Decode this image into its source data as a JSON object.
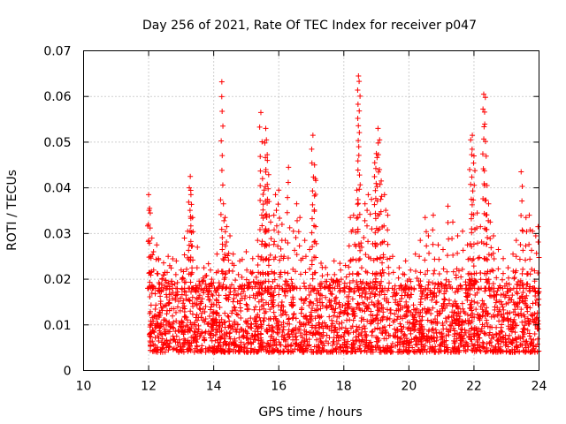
{
  "chart_data": {
    "type": "scatter",
    "title": "Day 256 of 2021, Rate Of TEC Index for receiver p047",
    "xlabel": "GPS time / hours",
    "ylabel": "ROTI / TECUs",
    "xlim": [
      10,
      24
    ],
    "ylim": [
      0,
      0.07
    ],
    "xticks": [
      10,
      12,
      14,
      16,
      18,
      20,
      22,
      24
    ],
    "xtick_labels": [
      "10",
      "12",
      "14",
      "16",
      "18",
      "20",
      "22",
      "24"
    ],
    "yticks": [
      0,
      0.01,
      0.02,
      0.03,
      0.04,
      0.05,
      0.06,
      0.07
    ],
    "ytick_labels": [
      "0",
      "0.01",
      "0.02",
      "0.03",
      "0.04",
      "0.05",
      "0.06",
      "0.07"
    ],
    "grid": true,
    "marker": "+",
    "color": "#ff0000",
    "series": [
      {
        "name": "p047",
        "points": [
          [
            12.0,
            0.0385
          ],
          [
            12.03,
            0.0355
          ],
          [
            12.05,
            0.0345
          ],
          [
            12.1,
            0.029
          ],
          [
            12.15,
            0.026
          ],
          [
            12.25,
            0.0275
          ],
          [
            12.3,
            0.0245
          ],
          [
            12.5,
            0.0215
          ],
          [
            12.6,
            0.025
          ],
          [
            12.7,
            0.0195
          ],
          [
            12.85,
            0.024
          ],
          [
            13.0,
            0.022
          ],
          [
            13.1,
            0.029
          ],
          [
            13.2,
            0.0305
          ],
          [
            13.25,
            0.04
          ],
          [
            13.28,
            0.0425
          ],
          [
            13.3,
            0.0385
          ],
          [
            13.35,
            0.0335
          ],
          [
            13.5,
            0.027
          ],
          [
            13.7,
            0.0225
          ],
          [
            13.9,
            0.022
          ],
          [
            14.1,
            0.0255
          ],
          [
            14.25,
            0.0632
          ],
          [
            14.3,
            0.0365
          ],
          [
            14.35,
            0.0335
          ],
          [
            14.4,
            0.0315
          ],
          [
            14.5,
            0.0295
          ],
          [
            14.6,
            0.0255
          ],
          [
            14.8,
            0.024
          ],
          [
            15.0,
            0.026
          ],
          [
            15.2,
            0.0245
          ],
          [
            15.35,
            0.0285
          ],
          [
            15.45,
            0.0565
          ],
          [
            15.5,
            0.042
          ],
          [
            15.55,
            0.0395
          ],
          [
            15.6,
            0.053
          ],
          [
            15.62,
            0.0505
          ],
          [
            15.65,
            0.046
          ],
          [
            15.7,
            0.037
          ],
          [
            15.75,
            0.0325
          ],
          [
            15.85,
            0.034
          ],
          [
            15.9,
            0.0385
          ],
          [
            16.0,
            0.0395
          ],
          [
            16.1,
            0.032
          ],
          [
            16.2,
            0.0285
          ],
          [
            16.3,
            0.0445
          ],
          [
            16.45,
            0.0305
          ],
          [
            16.55,
            0.0365
          ],
          [
            16.65,
            0.0335
          ],
          [
            16.8,
            0.0285
          ],
          [
            16.95,
            0.0265
          ],
          [
            17.05,
            0.0515
          ],
          [
            17.1,
            0.045
          ],
          [
            17.12,
            0.042
          ],
          [
            17.3,
            0.0235
          ],
          [
            17.5,
            0.021
          ],
          [
            17.7,
            0.024
          ],
          [
            17.9,
            0.022
          ],
          [
            18.05,
            0.023
          ],
          [
            18.2,
            0.0335
          ],
          [
            18.3,
            0.034
          ],
          [
            18.4,
            0.0395
          ],
          [
            18.45,
            0.0645
          ],
          [
            18.47,
            0.0633
          ],
          [
            18.55,
            0.027
          ],
          [
            18.65,
            0.0365
          ],
          [
            18.75,
            0.0385
          ],
          [
            18.85,
            0.0375
          ],
          [
            18.95,
            0.0455
          ],
          [
            19.0,
            0.0475
          ],
          [
            19.05,
            0.053
          ],
          [
            19.1,
            0.0505
          ],
          [
            19.15,
            0.0415
          ],
          [
            19.25,
            0.0385
          ],
          [
            19.35,
            0.034
          ],
          [
            19.5,
            0.025
          ],
          [
            19.7,
            0.0225
          ],
          [
            19.9,
            0.024
          ],
          [
            20.05,
            0.022
          ],
          [
            20.2,
            0.0255
          ],
          [
            20.35,
            0.0285
          ],
          [
            20.5,
            0.0335
          ],
          [
            20.6,
            0.0295
          ],
          [
            20.75,
            0.034
          ],
          [
            20.9,
            0.0275
          ],
          [
            21.05,
            0.0265
          ],
          [
            21.2,
            0.036
          ],
          [
            21.35,
            0.0325
          ],
          [
            21.5,
            0.0295
          ],
          [
            21.65,
            0.0305
          ],
          [
            21.8,
            0.0275
          ],
          [
            21.9,
            0.0505
          ],
          [
            21.95,
            0.0515
          ],
          [
            22.0,
            0.047
          ],
          [
            22.1,
            0.0345
          ],
          [
            22.2,
            0.0315
          ],
          [
            22.3,
            0.0605
          ],
          [
            22.35,
            0.0598
          ],
          [
            22.4,
            0.0405
          ],
          [
            22.45,
            0.0365
          ],
          [
            22.5,
            0.0325
          ],
          [
            22.6,
            0.0295
          ],
          [
            22.75,
            0.0265
          ],
          [
            22.9,
            0.0245
          ],
          [
            23.05,
            0.0225
          ],
          [
            23.2,
            0.0255
          ],
          [
            23.3,
            0.0285
          ],
          [
            23.45,
            0.0435
          ],
          [
            23.5,
            0.0305
          ],
          [
            23.6,
            0.0335
          ],
          [
            23.7,
            0.034
          ],
          [
            23.8,
            0.0305
          ],
          [
            23.9,
            0.0295
          ],
          [
            23.97,
            0.0315
          ]
        ],
        "baseline_band": [
          0.004,
          0.02
        ],
        "baseline_xrange": [
          12.0,
          24.0
        ]
      }
    ]
  }
}
